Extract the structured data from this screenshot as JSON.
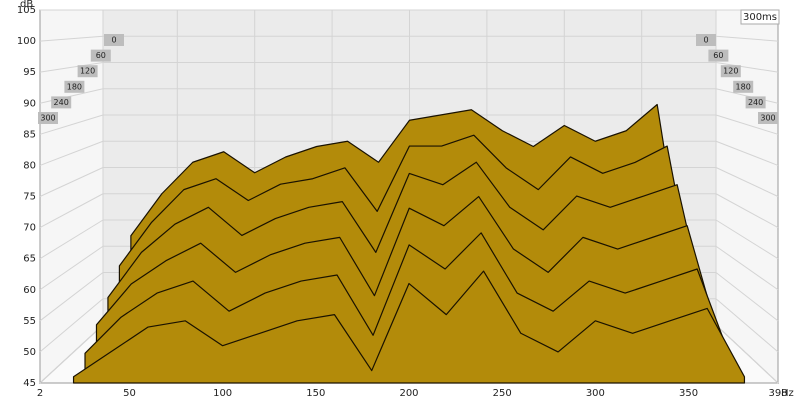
{
  "chart_data": {
    "type": "waterfall",
    "y_label": "dB",
    "x_unit": "Hz",
    "time_window": "300ms",
    "x": [
      20,
      40,
      60,
      80,
      100,
      120,
      140,
      160,
      180,
      200,
      220,
      240,
      260,
      280,
      300,
      320,
      340,
      360,
      380
    ],
    "series": [
      {
        "name": "0",
        "values": [
          62,
          70,
          76,
          78,
          74,
          77,
          79,
          80,
          76,
          84,
          85,
          86,
          82,
          79,
          83,
          80,
          82,
          87,
          50
        ]
      },
      {
        "name": "60",
        "values": [
          58,
          66,
          72,
          74,
          70,
          73,
          74,
          76,
          68,
          80,
          80,
          82,
          76,
          72,
          78,
          75,
          77,
          80,
          49
        ]
      },
      {
        "name": "120",
        "values": [
          54,
          62,
          67,
          70,
          65,
          68,
          70,
          71,
          62,
          76,
          74,
          78,
          70,
          66,
          72,
          70,
          72,
          74,
          48
        ]
      },
      {
        "name": "180",
        "values": [
          51,
          58,
          62,
          65,
          60,
          63,
          65,
          66,
          56,
          71,
          68,
          73,
          64,
          60,
          66,
          64,
          66,
          68,
          47
        ]
      },
      {
        "name": "240",
        "values": [
          48,
          54,
          58,
          60,
          55,
          58,
          60,
          61,
          51,
          66,
          62,
          68,
          58,
          55,
          60,
          58,
          60,
          62,
          46
        ]
      },
      {
        "name": "300",
        "values": [
          46,
          50,
          54,
          55,
          51,
          53,
          55,
          56,
          47,
          61,
          56,
          63,
          53,
          50,
          55,
          53,
          55,
          57,
          46
        ]
      }
    ],
    "color": "#b38b0a",
    "ylim": [
      45,
      105
    ],
    "yticks": [
      45,
      50,
      55,
      60,
      65,
      70,
      75,
      80,
      85,
      90,
      95,
      100,
      105
    ],
    "xlim": [
      2,
      398
    ],
    "xticks": [
      2,
      50,
      100,
      150,
      200,
      250,
      300,
      350,
      398
    ],
    "grid": true
  }
}
